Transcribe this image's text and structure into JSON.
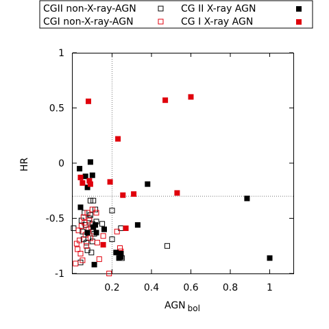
{
  "chart_data": {
    "type": "scatter",
    "xlabel": "AGN",
    "xlabel_sub": "bol",
    "ylabel": "HR",
    "xlim": [
      0,
      1.12
    ],
    "ylim": [
      -1,
      1
    ],
    "x_ticks": [
      0.2,
      0.4,
      0.6,
      0.8,
      1
    ],
    "x_tick_labels": [
      "0.2",
      "0.4",
      "0.6",
      "0.8",
      "1"
    ],
    "y_ticks": [
      -1,
      -0.5,
      0,
      0.5,
      1
    ],
    "y_tick_labels": [
      "-1",
      "-0.5",
      "0",
      "0.5",
      "1"
    ],
    "grid": false,
    "reference_lines": {
      "vertical_x": 0.2,
      "horizontal_y": -0.3
    },
    "legend_position": "top, outside plot",
    "colors": {
      "black": "#000000",
      "red": "#e0000c"
    },
    "series": [
      {
        "name": "CGII non-X-ray-AGN",
        "marker": "open-square",
        "color": "#000000",
        "x": [
          0.005,
          0.04,
          0.045,
          0.05,
          0.055,
          0.06,
          0.065,
          0.07,
          0.075,
          0.08,
          0.085,
          0.09,
          0.09,
          0.095,
          0.1,
          0.1,
          0.105,
          0.11,
          0.115,
          0.12,
          0.15,
          0.2,
          0.2,
          0.245,
          0.25,
          0.48
        ],
        "y": [
          -0.59,
          -0.9,
          -0.52,
          -0.62,
          -0.69,
          -0.45,
          -0.56,
          -0.72,
          -0.79,
          -0.68,
          -0.5,
          -0.47,
          -0.34,
          -0.81,
          -0.55,
          -0.71,
          -0.34,
          -0.64,
          -0.42,
          -0.53,
          -0.55,
          -0.43,
          -0.69,
          -0.59,
          -0.86,
          -0.75
        ]
      },
      {
        "name": "CGI non-X-ray-AGN",
        "marker": "open-square",
        "color": "#e0000c",
        "x": [
          0.015,
          0.02,
          0.025,
          0.03,
          0.035,
          0.04,
          0.045,
          0.05,
          0.055,
          0.06,
          0.065,
          0.07,
          0.075,
          0.08,
          0.085,
          0.09,
          0.095,
          0.1,
          0.105,
          0.12,
          0.125,
          0.135,
          0.155,
          0.185,
          0.225,
          0.24,
          0.245
        ],
        "y": [
          -0.91,
          -0.73,
          -0.78,
          -0.61,
          -0.7,
          -0.82,
          -0.57,
          -0.88,
          -0.49,
          -0.54,
          -0.65,
          -0.75,
          -0.45,
          -0.6,
          -0.52,
          -0.68,
          -0.58,
          -0.42,
          -0.62,
          -0.45,
          -0.72,
          -0.87,
          -0.66,
          -1.0,
          -0.62,
          -0.77,
          -0.8
        ]
      },
      {
        "name": "CG II X-ray AGN",
        "marker": "filled-square",
        "color": "#000000",
        "x": [
          0.035,
          0.04,
          0.065,
          0.075,
          0.075,
          0.09,
          0.1,
          0.105,
          0.11,
          0.115,
          0.12,
          0.16,
          0.22,
          0.235,
          0.245,
          0.245,
          0.33,
          0.38,
          0.885,
          1.0
        ],
        "y": [
          -0.05,
          -0.4,
          -0.12,
          -0.22,
          -0.63,
          0.01,
          -0.11,
          -0.58,
          -0.92,
          -0.56,
          -0.63,
          -0.6,
          -0.81,
          -0.86,
          -0.82,
          -0.85,
          -0.56,
          -0.19,
          -0.32,
          -0.86
        ]
      },
      {
        "name": "CG I X-ray AGN",
        "marker": "filled-square",
        "color": "#e0000c",
        "x": [
          0.04,
          0.05,
          0.08,
          0.085,
          0.09,
          0.155,
          0.19,
          0.23,
          0.255,
          0.27,
          0.31,
          0.47,
          0.53,
          0.6
        ],
        "y": [
          -0.13,
          -0.18,
          0.56,
          -0.16,
          -0.19,
          -0.74,
          -0.17,
          0.22,
          -0.29,
          -0.59,
          -0.28,
          0.57,
          -0.27,
          0.6
        ]
      }
    ]
  }
}
